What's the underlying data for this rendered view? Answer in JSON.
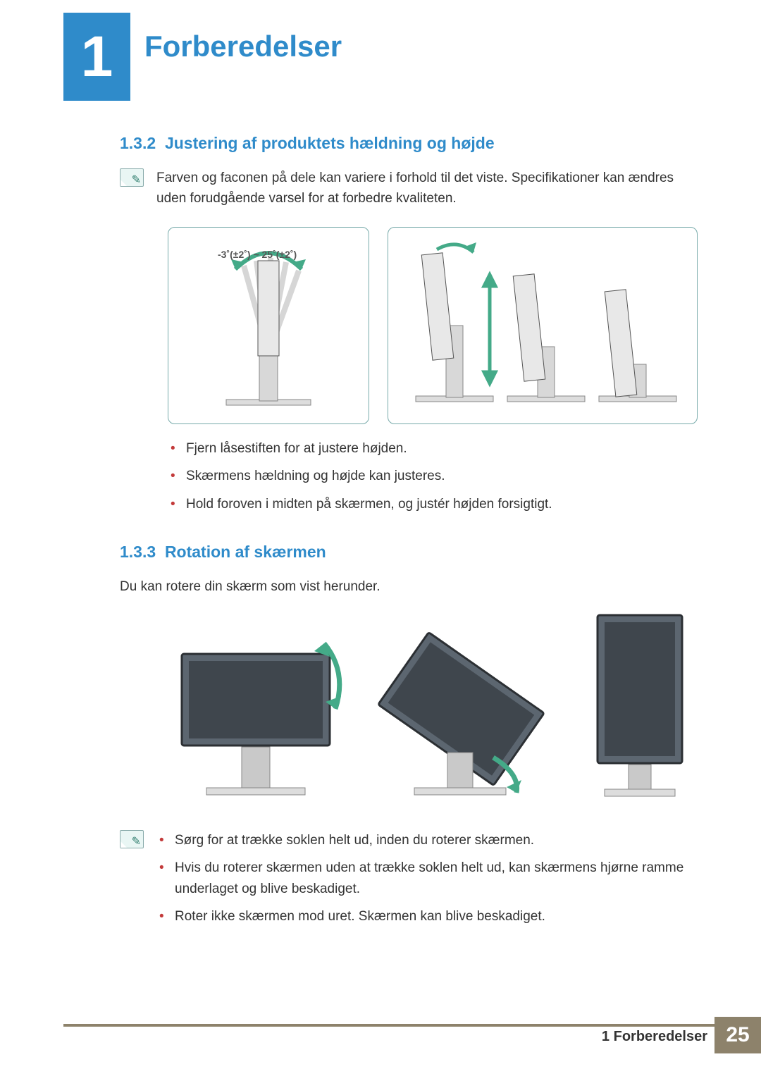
{
  "colors": {
    "accent_blue": "#2f8bca",
    "footer_brown": "#8d826b",
    "diagram_border": "#7aa9a2",
    "bullet_red": "#c33a3a",
    "text": "#333333",
    "monitor_fill": "#5c6670",
    "monitor_stroke": "#2b2f33"
  },
  "header": {
    "chapter_number": "1",
    "chapter_title": "Forberedelser"
  },
  "section_132": {
    "number": "1.3.2",
    "title": "Justering af produktets hældning og højde",
    "note": "Farven og faconen på dele kan variere i forhold til det viste. Specifikationer kan ændres uden forudgående varsel for at forbedre kvaliteten.",
    "tilt_angle_label": "-3˚(±2˚) ~ 25˚(±2˚)",
    "bullets": [
      "Fjern låsestiften for at justere højden.",
      "Skærmens hældning og højde kan justeres.",
      "Hold foroven i midten på skærmen, og justér højden forsigtigt."
    ]
  },
  "section_133": {
    "number": "1.3.3",
    "title": "Rotation af skærmen",
    "intro": "Du kan rotere din skærm som vist herunder.",
    "bullets": [
      "Sørg for at trække soklen helt ud, inden du roterer skærmen.",
      "Hvis du roterer skærmen uden at trække soklen helt ud, kan skærmens hjørne ramme underlaget og blive beskadiget.",
      "Roter ikke skærmen mod uret. Skærmen kan blive beskadiget."
    ]
  },
  "footer": {
    "text": "1 Forberedelser",
    "page": "25"
  }
}
